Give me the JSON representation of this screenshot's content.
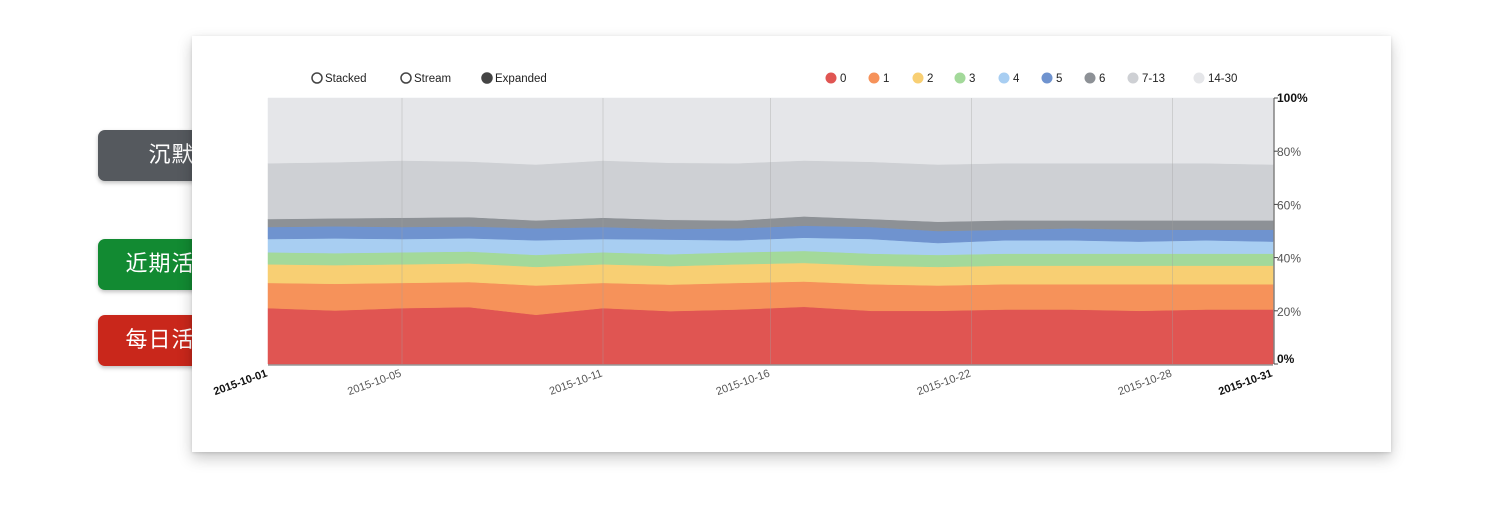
{
  "side_labels": [
    {
      "text": "沉默",
      "color": "#55595e",
      "bracket_color": "#a0a0a0"
    },
    {
      "text": "近期活跃",
      "color": "#128a32",
      "bracket_color": "#1fe03a"
    },
    {
      "text": "每日活跃",
      "color": "#c9271b",
      "bracket_color": "#ee2b22"
    }
  ],
  "controls": {
    "options": [
      {
        "label": "Stacked",
        "selected": false
      },
      {
        "label": "Stream",
        "selected": false
      },
      {
        "label": "Expanded",
        "selected": true
      }
    ]
  },
  "chart_data": {
    "type": "area",
    "mode": "expanded",
    "x_start": "2015-10-01",
    "x_end": "2015-10-31",
    "x_tick_labels": [
      "2015-10-01",
      "2015-10-05",
      "2015-10-11",
      "2015-10-16",
      "2015-10-22",
      "2015-10-28",
      "2015-10-31"
    ],
    "x_tick_days": [
      1,
      5,
      11,
      16,
      22,
      28,
      31
    ],
    "y_tick_labels": [
      "0%",
      "20%",
      "40%",
      "60%",
      "80%",
      "100%"
    ],
    "y_ticks": [
      0,
      20,
      40,
      60,
      80,
      100
    ],
    "ylim": [
      0,
      100
    ],
    "legend_position": "top-right",
    "days": [
      1,
      3,
      5,
      7,
      9,
      11,
      13,
      15,
      17,
      19,
      21,
      23,
      25,
      27,
      29,
      31
    ],
    "series": [
      {
        "name": "0",
        "color": "#e05552",
        "values": [
          21,
          20,
          21,
          21.5,
          18.5,
          21,
          20,
          20.5,
          21.5,
          20,
          20,
          20.5,
          20.5,
          20,
          20.5,
          20.5
        ]
      },
      {
        "name": "1",
        "color": "#f6925a",
        "values": [
          9.5,
          10,
          9.5,
          9.5,
          11,
          9.5,
          10,
          10,
          9.5,
          10,
          9.5,
          9.5,
          9.5,
          10,
          9.5,
          9.5
        ]
      },
      {
        "name": "2",
        "color": "#f8cf73",
        "values": [
          7,
          7,
          7,
          7,
          7,
          7,
          7,
          7,
          7,
          7,
          7,
          7,
          7,
          7,
          7,
          7
        ]
      },
      {
        "name": "3",
        "color": "#a3d99a",
        "values": [
          4.5,
          4.5,
          4.5,
          4.5,
          4.5,
          4.5,
          4.5,
          4.5,
          4.5,
          4.5,
          4.5,
          4.5,
          4.5,
          4.5,
          4.5,
          4.5
        ]
      },
      {
        "name": "4",
        "color": "#a8cef2",
        "values": [
          5,
          5.5,
          5,
          5,
          5.5,
          5,
          5.5,
          4.5,
          5,
          5.5,
          4.5,
          5,
          5,
          4.5,
          5,
          4.5
        ]
      },
      {
        "name": "5",
        "color": "#6f93cf",
        "values": [
          4.5,
          4.5,
          4.5,
          4.5,
          4.5,
          4.5,
          4,
          4.5,
          4.5,
          4.5,
          4.5,
          4,
          4.5,
          4.5,
          4,
          4.5
        ]
      },
      {
        "name": "6",
        "color": "#8d9196",
        "values": [
          3,
          3,
          3.5,
          3.5,
          3,
          3.5,
          3.5,
          3,
          3.5,
          3,
          3.5,
          3.5,
          3,
          3.5,
          3.5,
          3.5
        ]
      },
      {
        "name": "7-13",
        "color": "#ced0d4",
        "values": [
          21,
          21,
          21.5,
          21,
          21,
          21.5,
          21.5,
          21.5,
          21,
          21.5,
          21.5,
          21.5,
          21.5,
          21.5,
          21.5,
          21
        ]
      },
      {
        "name": "14-30",
        "color": "#e5e6e9",
        "values": [
          24.5,
          24,
          23.5,
          24,
          25,
          23.5,
          24.5,
          24.5,
          23.5,
          24,
          25,
          24.5,
          24.5,
          24.5,
          24.5,
          25
        ]
      }
    ]
  }
}
